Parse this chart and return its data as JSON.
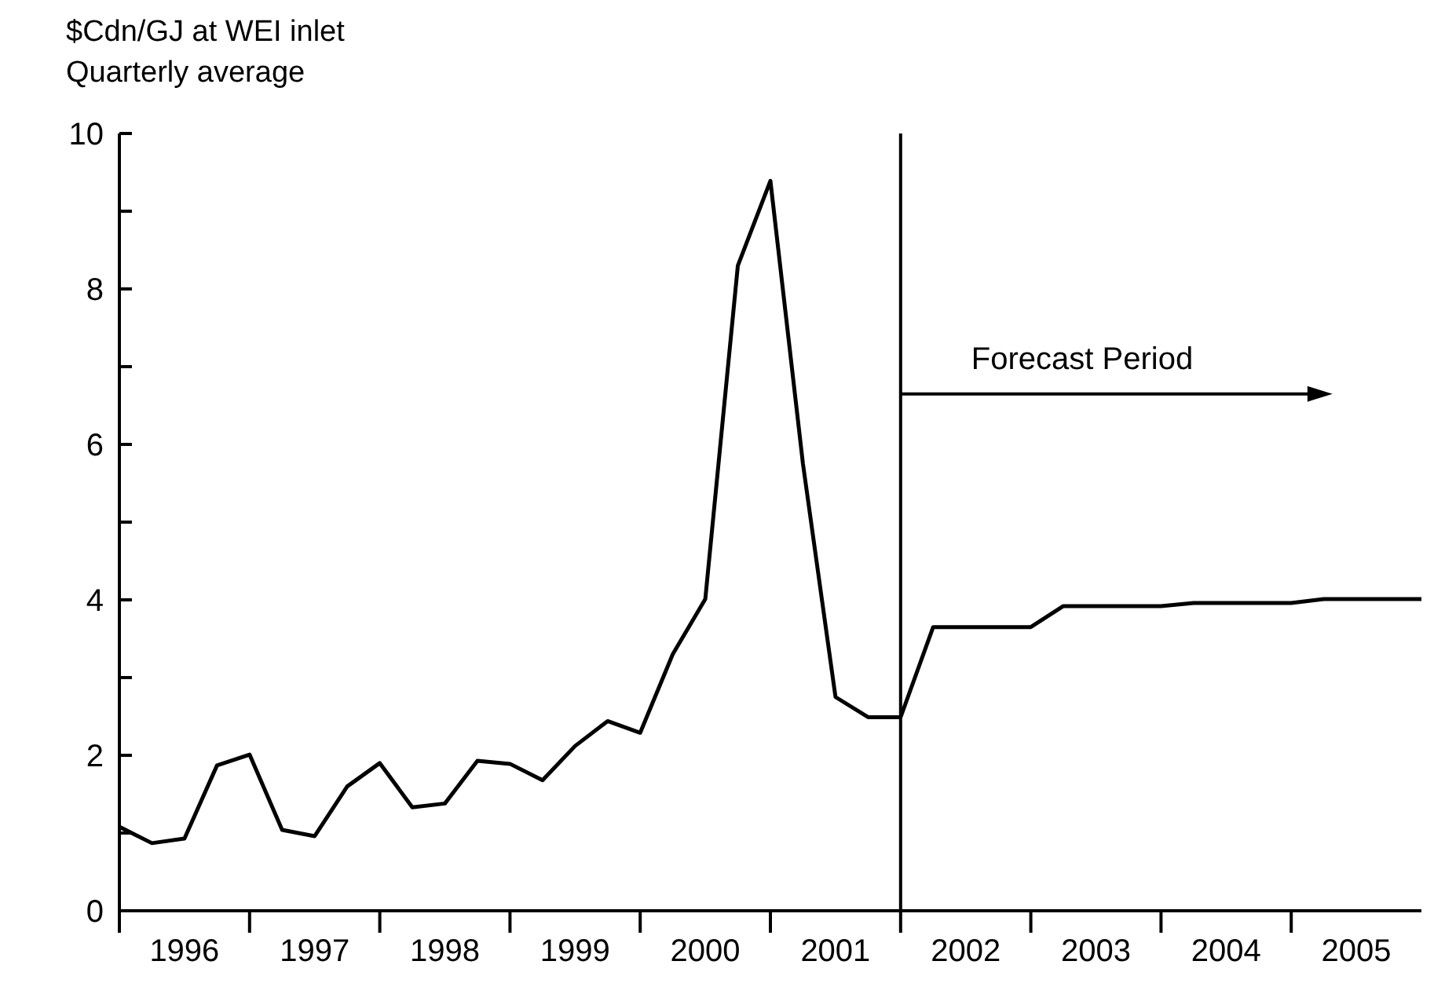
{
  "chart_data": {
    "type": "line",
    "ylabel": "$Cdn/GJ at WEI inlet\nQuarterly average",
    "x": [
      1996,
      1996.25,
      1996.5,
      1996.75,
      1997,
      1997.25,
      1997.5,
      1997.75,
      1998,
      1998.25,
      1998.5,
      1998.75,
      1999,
      1999.25,
      1999.5,
      1999.75,
      2000,
      2000.25,
      2000.5,
      2000.75,
      2001,
      2001.25,
      2001.5,
      2001.75,
      2002,
      2002.25,
      2002.5,
      2002.75,
      2003,
      2003.25,
      2003.5,
      2003.75,
      2004,
      2004.25,
      2004.5,
      2004.75,
      2005,
      2005.25,
      2005.5,
      2005.75,
      2006
    ],
    "series": [
      {
        "color": "#000000",
        "values": [
          1.08,
          0.87,
          0.93,
          1.87,
          2.01,
          1.04,
          0.96,
          1.6,
          1.9,
          1.33,
          1.38,
          1.93,
          1.89,
          1.68,
          2.12,
          2.44,
          2.29,
          3.3,
          4.01,
          8.3,
          9.39,
          5.75,
          2.75,
          2.49,
          2.49,
          3.65,
          3.65,
          3.65,
          3.65,
          3.92,
          3.92,
          3.92,
          3.92,
          3.96,
          3.96,
          3.96,
          3.96,
          4.01,
          4.01,
          4.01,
          4.01
        ]
      }
    ],
    "xlim": [
      1996,
      2006
    ],
    "xticks": [
      {
        "value": 1996,
        "label": null
      },
      {
        "value": 1996.5,
        "label": "1996"
      },
      {
        "value": 1997,
        "label": null
      },
      {
        "value": 1997.5,
        "label": "1997"
      },
      {
        "value": 1998,
        "label": null
      },
      {
        "value": 1998.5,
        "label": "1998"
      },
      {
        "value": 1999,
        "label": null
      },
      {
        "value": 1999.5,
        "label": "1999"
      },
      {
        "value": 2000,
        "label": null
      },
      {
        "value": 2000.5,
        "label": "2000"
      },
      {
        "value": 2001,
        "label": null
      },
      {
        "value": 2001.5,
        "label": "2001"
      },
      {
        "value": 2002,
        "label": null
      },
      {
        "value": 2002.5,
        "label": "2002"
      },
      {
        "value": 2003,
        "label": null
      },
      {
        "value": 2003.5,
        "label": "2003"
      },
      {
        "value": 2004,
        "label": null
      },
      {
        "value": 2004.5,
        "label": "2004"
      },
      {
        "value": 2005,
        "label": null
      },
      {
        "value": 2005.5,
        "label": "2005"
      }
    ],
    "ylim": [
      0,
      10
    ],
    "yticks": [
      0,
      {
        "value": 1,
        "label": null
      },
      2,
      {
        "value": 3,
        "label": null
      },
      4,
      {
        "value": 5,
        "label": null
      },
      6,
      {
        "value": 7,
        "label": null
      },
      8,
      {
        "value": 9,
        "label": null
      },
      10
    ],
    "ref_lines": [
      {
        "axis": "x",
        "value": 2002,
        "label": "Forecast Period",
        "color": "#000000"
      }
    ],
    "grid": false,
    "legend": false,
    "marker": "none",
    "line_style": "solid"
  }
}
